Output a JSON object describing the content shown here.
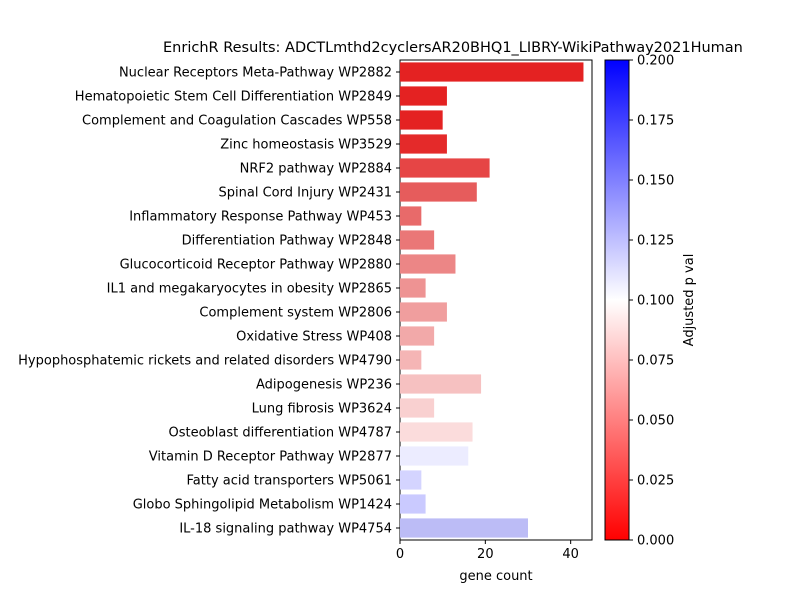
{
  "chart_data": {
    "type": "bar",
    "orientation": "horizontal",
    "title": "EnrichR Results: ADCTLmthd2cyclersAR20BHQ1_LIBRY-WikiPathway2021Human",
    "xlabel": "gene count",
    "ylabel": "",
    "xlim": [
      0,
      45
    ],
    "xticks": [
      0,
      20,
      40
    ],
    "grid": false,
    "categories": [
      "Nuclear Receptors Meta-Pathway WP2882",
      "Hematopoietic Stem Cell Differentiation WP2849",
      "Complement and Coagulation Cascades WP558",
      "Zinc homeostasis WP3529",
      "NRF2 pathway WP2884",
      "Spinal Cord Injury WP2431",
      "Inflammatory Response Pathway WP453",
      "Differentiation Pathway WP2848",
      "Glucocorticoid Receptor Pathway WP2880",
      "IL1 and megakaryocytes in obesity WP2865",
      "Complement system WP2806",
      "Oxidative Stress WP408",
      "Hypophosphatemic rickets and related disorders WP4790",
      "Adipogenesis WP236",
      "Lung fibrosis WP3624",
      "Osteoblast differentiation WP4787",
      "Vitamin D Receptor Pathway WP2877",
      "Fatty acid transporters WP5061",
      "Globo Sphingolipid Metabolism WP1424",
      "IL-18 signaling pathway WP4754"
    ],
    "values": [
      43,
      11,
      10,
      11,
      21,
      18,
      5,
      8,
      13,
      6,
      11,
      8,
      5,
      19,
      8,
      17,
      16,
      5,
      6,
      30
    ],
    "colors": [
      "#e42222",
      "#e42222",
      "#e42222",
      "#e42a2a",
      "#e64545",
      "#e65c5c",
      "#e86a6a",
      "#ea7777",
      "#ec8686",
      "#ee9393",
      "#f09e9e",
      "#f2a9a9",
      "#f5b5b5",
      "#f6c1c1",
      "#f9d0d0",
      "#fbdcdc",
      "#ececff",
      "#d4d4ff",
      "#cacaff",
      "#bcbcf6"
    ],
    "colorbar": {
      "label": "Adjusted p val",
      "min": 0.0,
      "max": 0.2,
      "ticks": [
        "0.000",
        "0.025",
        "0.050",
        "0.075",
        "0.100",
        "0.125",
        "0.150",
        "0.175",
        "0.200"
      ],
      "colormap": [
        "#ff0000",
        "#ffffff",
        "#0000ff"
      ]
    }
  }
}
